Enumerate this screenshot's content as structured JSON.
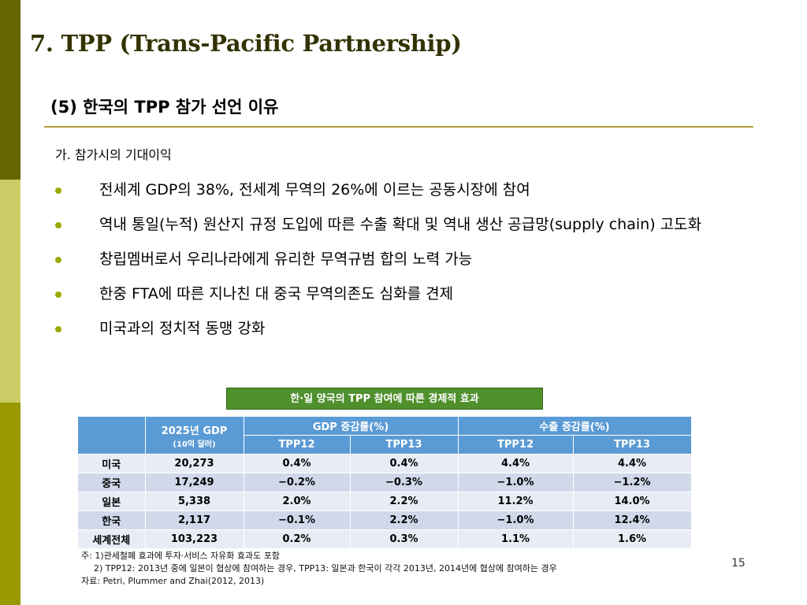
{
  "slide": {
    "title": "7. TPP (Trans-Pacific Partnership)",
    "subtitle": "(5) 한국의 TPP 참가 선언 이유",
    "section_label": "가. 참가시의 기대이익",
    "bullets": [
      "전세계 GDP의 38%, 전세계 무역의 26%에 이르는 공동시장에 참여",
      "역내 통일(누적) 원산지 규정 도입에 따른 수출 확대 및 역내 생산 공급망(supply chain) 고도화",
      "창립멤버로서 우리나라에게 유리한 무역규범 합의 노력 가능",
      "한중 FTA에 따른 지나친 대 중국 무역의존도 심화를 견제",
      "미국과의 정치적 동맹 강화"
    ],
    "page_number": "15",
    "colors": {
      "title": "#333300",
      "bullet": "#99aa00",
      "table_header": "#5b9bd5",
      "caption_bg": "#4f8f2c"
    }
  },
  "table": {
    "caption": "한·일 양국의 TPP 참여에 따른 경제적 효과",
    "header": {
      "gdp2025": "2025년 GDP",
      "gdp2025_unit": "(10억 달러)",
      "gdp_change": "GDP 증감률(%)",
      "export_change": "수출 증감률(%)",
      "sub": [
        "TPP12",
        "TPP13",
        "TPP12",
        "TPP13"
      ]
    },
    "rows": [
      {
        "country": "미국",
        "gdp": "20,273",
        "gdp12": "0.4%",
        "gdp13": "0.4%",
        "exp12": "4.4%",
        "exp13": "4.4%"
      },
      {
        "country": "중국",
        "gdp": "17,249",
        "gdp12": "−0.2%",
        "gdp13": "−0.3%",
        "exp12": "−1.0%",
        "exp13": "−1.2%"
      },
      {
        "country": "일본",
        "gdp": "5,338",
        "gdp12": "2.0%",
        "gdp13": "2.2%",
        "exp12": "11.2%",
        "exp13": "14.0%"
      },
      {
        "country": "한국",
        "gdp": "2,117",
        "gdp12": "−0.1%",
        "gdp13": "2.2%",
        "exp12": "−1.0%",
        "exp13": "12.4%"
      },
      {
        "country": "세계전체",
        "gdp": "103,223",
        "gdp12": "0.2%",
        "gdp13": "0.3%",
        "exp12": "1.1%",
        "exp13": "1.6%"
      }
    ],
    "notes": [
      "주: 1)관세철폐 효과에 투자·서비스 자유화 효과도 포함",
      "2) TPP12: 2013년 중에 일본이 협상에 참여하는 경우, TPP13: 일본과 한국이 각각 2013년, 2014년에 협상에 참여하는 경우",
      "자료: Petri, Plummer and Zhai(2012, 2013)"
    ]
  }
}
